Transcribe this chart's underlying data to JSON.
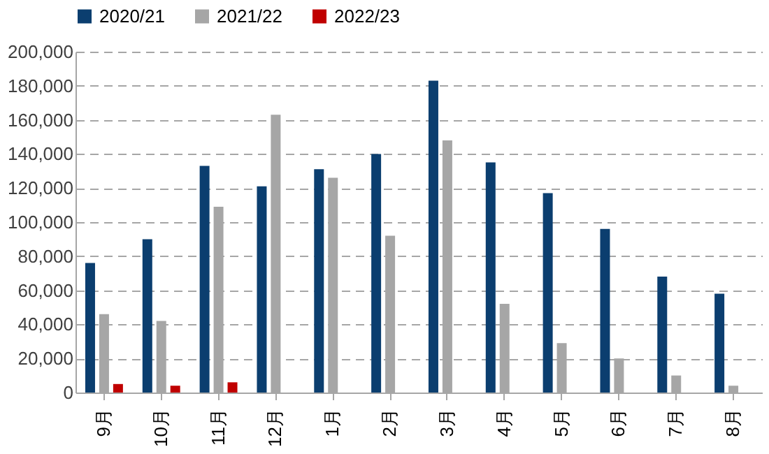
{
  "chart_data": {
    "type": "bar",
    "categories": [
      "9月",
      "10月",
      "11月",
      "12月",
      "1月",
      "2月",
      "3月",
      "4月",
      "5月",
      "6月",
      "7月",
      "8月"
    ],
    "series": [
      {
        "name": "2020/21",
        "color": "#0b3e6f",
        "values": [
          76000,
          90000,
          133000,
          121000,
          131000,
          140000,
          183000,
          135000,
          117000,
          96000,
          68000,
          58000
        ]
      },
      {
        "name": "2021/22",
        "color": "#a6a6a6",
        "values": [
          46000,
          42000,
          109000,
          163000,
          126000,
          92000,
          148000,
          52000,
          29000,
          20000,
          10000,
          4000
        ]
      },
      {
        "name": "2022/23",
        "color": "#c00000",
        "values": [
          5000,
          4000,
          6000,
          null,
          null,
          null,
          null,
          null,
          null,
          null,
          null,
          null
        ]
      }
    ],
    "ylim": [
      0,
      200000
    ],
    "yticks": [
      0,
      {
        "value": 20000,
        "label": "20,000"
      },
      {
        "value": 40000,
        "label": "40,000"
      },
      {
        "value": 60000,
        "label": "60,000"
      },
      {
        "value": 80000,
        "label": "80,000"
      },
      {
        "value": 100000,
        "label": "100,000"
      },
      {
        "value": 120000,
        "label": "120,000"
      },
      {
        "value": 140000,
        "label": "140,000"
      },
      {
        "value": 160000,
        "label": "160,000"
      },
      {
        "value": 180000,
        "label": "180,000"
      },
      {
        "value": 200000,
        "label": "200,000"
      }
    ],
    "grid": "y",
    "legend": "top"
  }
}
